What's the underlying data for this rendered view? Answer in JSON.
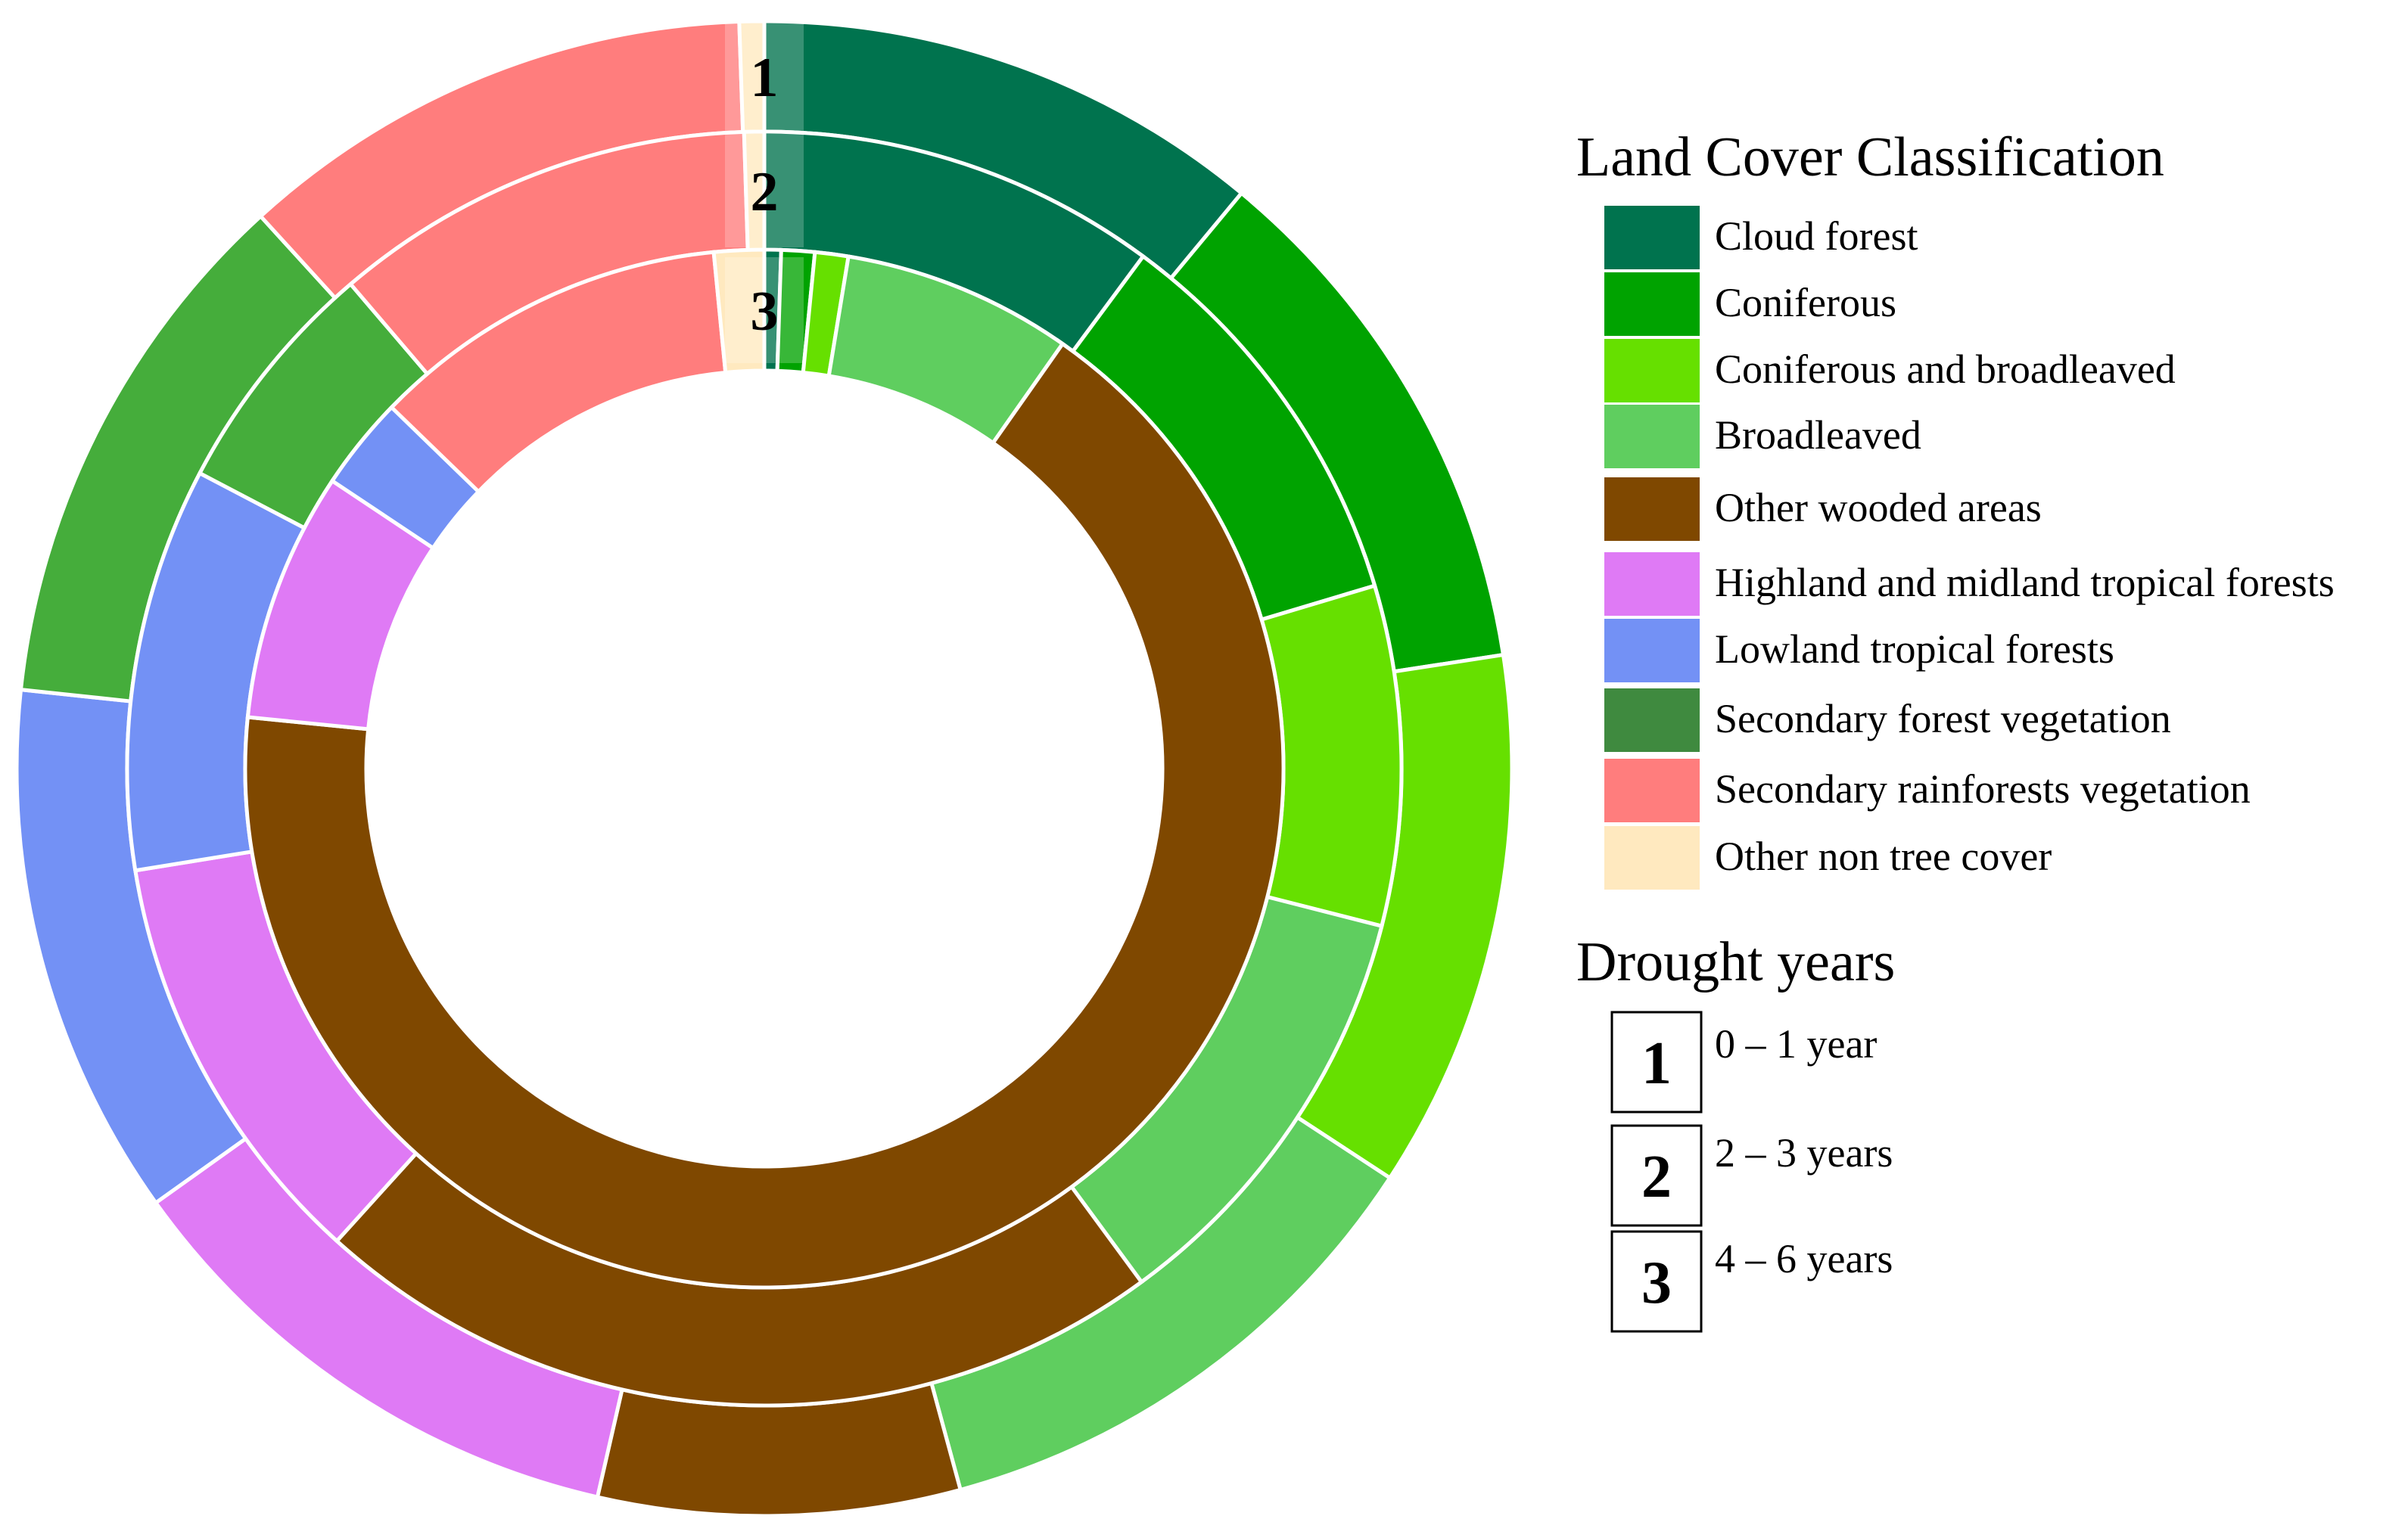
{
  "chart_data": {
    "type": "pie",
    "subtype": "multi-ring-donut",
    "legend_title": "Land Cover Classification",
    "categories": [
      {
        "name": "Cloud forest",
        "color": "#00734E"
      },
      {
        "name": "Coniferous",
        "color": "#00A300"
      },
      {
        "name": "Coniferous and broadleaved",
        "color": "#66E000"
      },
      {
        "name": "Broadleaved",
        "color": "#5FCE5F"
      },
      {
        "name": "Other wooded areas",
        "color": "#7F4800"
      },
      {
        "name": "Highland and midland tropical forests",
        "color": "#DF7AF5"
      },
      {
        "name": "Lowland tropical forests",
        "color": "#7391F5"
      },
      {
        "name": "Secondary forest vegetation",
        "color": "#3F8A3F"
      },
      {
        "name": "Secondary rainforests vegetation",
        "color": "#FF7D7D"
      },
      {
        "name": "Other non tree cover",
        "color": "#FFE9BF"
      }
    ],
    "ring_fill_colors": {
      "Secondary forest vegetation": "#45AD3B"
    },
    "rings": [
      {
        "label": "1",
        "legend": "0 – 1 year",
        "values": [
          10.3,
          10.8,
          10.9,
          10.8,
          7.3,
          10.8,
          10.8,
          10.8,
          10.5,
          0.5
        ]
      },
      {
        "label": "2",
        "legend": "2 – 3 years",
        "values": [
          10.0,
          10.1,
          8.5,
          10.8,
          21.5,
          10.6,
          10.1,
          6.0,
          10.6,
          0.5
        ]
      },
      {
        "label": "3",
        "legend": "4 – 6 years",
        "values": [
          0.5,
          1.0,
          1.0,
          6.9,
          64.5,
          7.5,
          2.8,
          0,
          10.8,
          1.5
        ]
      }
    ],
    "secondary_legend_title": "Drought years"
  }
}
